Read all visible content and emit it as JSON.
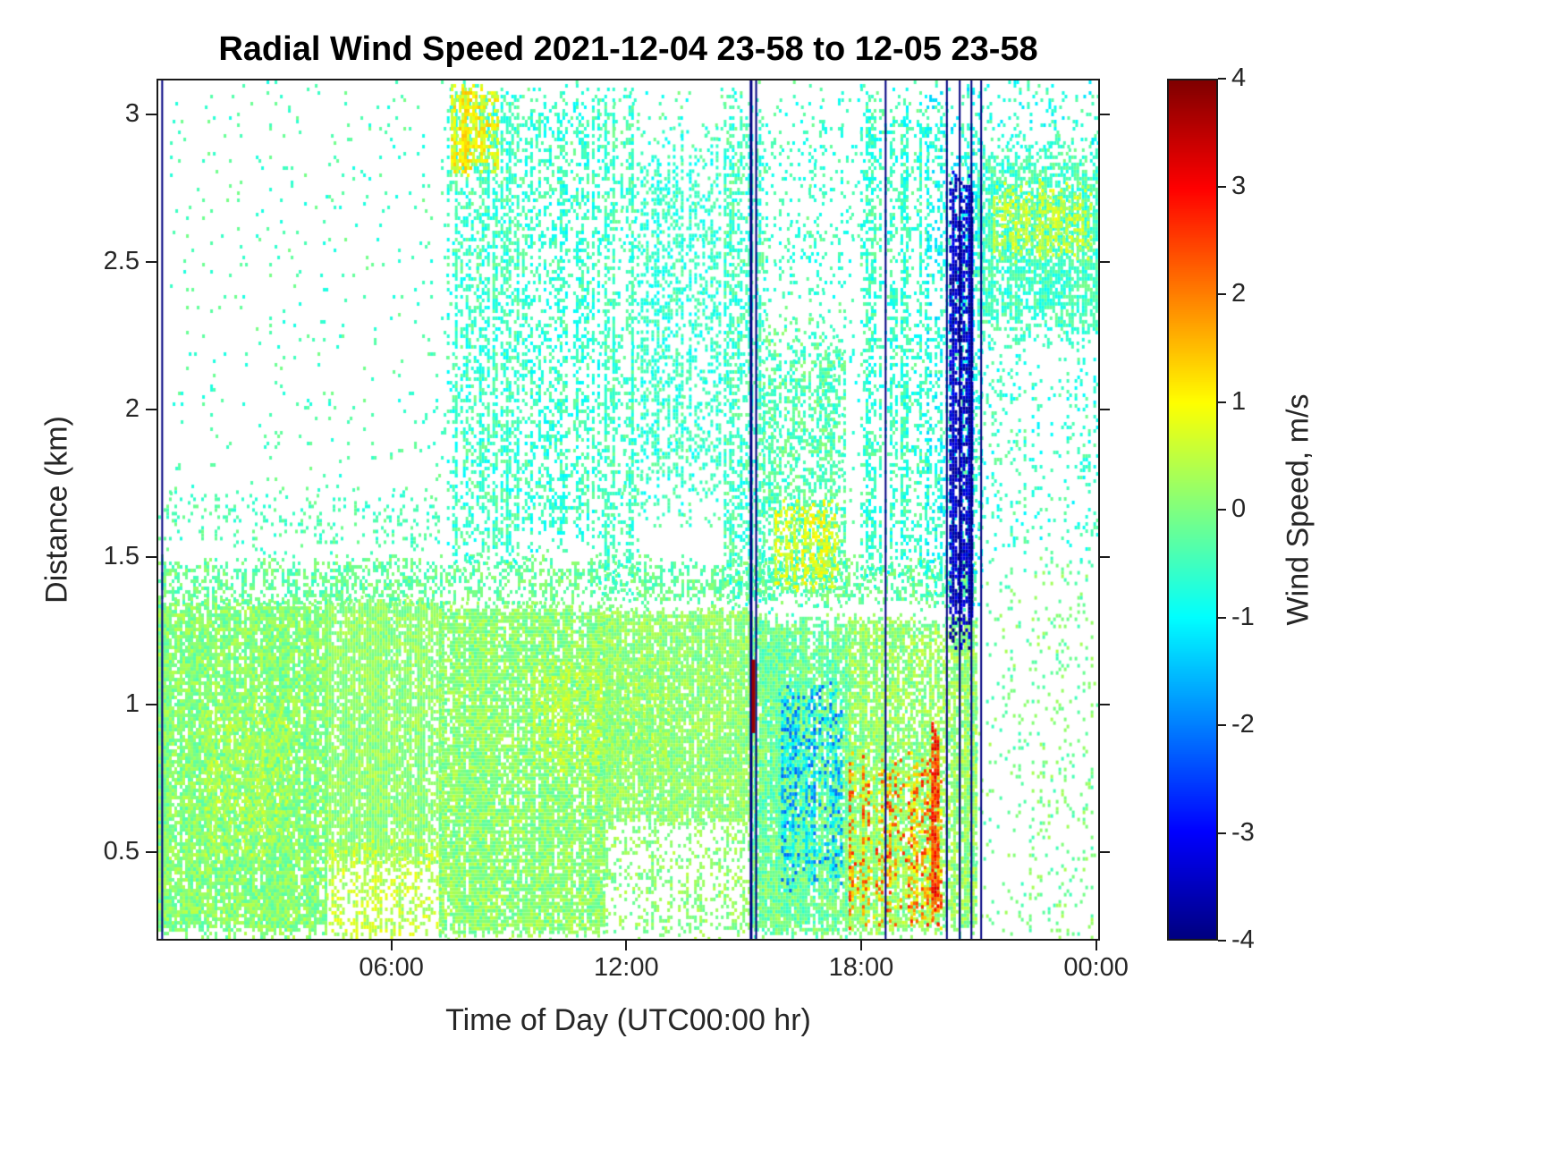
{
  "chart_data": {
    "type": "heatmap",
    "title": "Radial Wind Speed 2021-12-04 23-58 to 12-05 23-58",
    "xlabel": "Time of Day (UTC00:00 hr)",
    "ylabel": "Distance (km)",
    "x_unit": "hours since 2021-12-04 23:58 UTC",
    "x_range": [
      0,
      24.1
    ],
    "y_range": [
      0.2,
      3.12
    ],
    "x_ticks": [
      {
        "value": 6,
        "label": "06:00"
      },
      {
        "value": 12,
        "label": "12:00"
      },
      {
        "value": 18,
        "label": "18:00"
      },
      {
        "value": 24,
        "label": "00:00"
      }
    ],
    "y_ticks": [
      {
        "value": 0.5,
        "label": "0.5"
      },
      {
        "value": 1,
        "label": "1"
      },
      {
        "value": 1.5,
        "label": "1.5"
      },
      {
        "value": 2,
        "label": "2"
      },
      {
        "value": 2.5,
        "label": "2.5"
      },
      {
        "value": 3,
        "label": "3"
      }
    ],
    "colorbar": {
      "label": "Wind Speed, m/s",
      "min": -4,
      "max": 4,
      "colormap": "jet",
      "ticks": [
        {
          "value": 4,
          "label": "4"
        },
        {
          "value": 3,
          "label": "3"
        },
        {
          "value": 2,
          "label": "2"
        },
        {
          "value": 1,
          "label": "1"
        },
        {
          "value": 0,
          "label": "0"
        },
        {
          "value": -1,
          "label": "-1"
        },
        {
          "value": -2,
          "label": "-2"
        },
        {
          "value": -3,
          "label": "-3"
        },
        {
          "value": -4,
          "label": "-4"
        }
      ]
    },
    "no_data_color": "#ffffff",
    "regions": [
      {
        "name": "upper-left-speckle",
        "x": [
          0.3,
          7.4
        ],
        "y": [
          1.7,
          3.12
        ],
        "v": -0.45,
        "jit": 0.4,
        "cov": 0.035,
        "striate": 0.6,
        "taper": 0
      },
      {
        "name": "upper-speckle-general",
        "x": [
          7.4,
          21.0
        ],
        "y": [
          1.6,
          3.12
        ],
        "v": -0.5,
        "jit": 0.5,
        "cov": 0.04,
        "striate": 0.7,
        "taper": 0
      },
      {
        "name": "bl-early",
        "x": [
          0,
          4.3
        ],
        "y": [
          0.2,
          1.38
        ],
        "v": 0.05,
        "jit": 0.45,
        "cov": 0.92,
        "striate": 0.35,
        "taper": 0.05
      },
      {
        "name": "bl-early-warm",
        "x": [
          1.2,
          3.4
        ],
        "y": [
          0.45,
          1.05
        ],
        "v": 0.45,
        "jit": 0.35,
        "cov": 0.35,
        "striate": 0.5,
        "taper": 0.2
      },
      {
        "name": "bl-morning",
        "x": [
          4.3,
          7.2
        ],
        "y": [
          0.45,
          1.38
        ],
        "v": 0.12,
        "jit": 0.4,
        "cov": 0.9,
        "striate": 0.35,
        "taper": 0.05
      },
      {
        "name": "bl-morning-bottom-warm",
        "x": [
          4.3,
          7.2
        ],
        "y": [
          0.2,
          0.55
        ],
        "v": 0.5,
        "jit": 0.45,
        "cov": 0.5,
        "striate": 0.6,
        "taper": 0.1
      },
      {
        "name": "bl-midday",
        "x": [
          7.2,
          11.4
        ],
        "y": [
          0.2,
          1.36
        ],
        "v": 0.1,
        "jit": 0.45,
        "cov": 0.92,
        "striate": 0.3,
        "taper": 0.04
      },
      {
        "name": "bl-midday-warm",
        "x": [
          9.6,
          13.1
        ],
        "y": [
          0.75,
          1.18
        ],
        "v": 0.55,
        "jit": 0.3,
        "cov": 0.45,
        "striate": 0.5,
        "taper": 0.2
      },
      {
        "name": "bl-noon",
        "x": [
          11.4,
          15.2
        ],
        "y": [
          0.58,
          1.34
        ],
        "v": 0.12,
        "jit": 0.4,
        "cov": 0.9,
        "striate": 0.35,
        "taper": 0.05
      },
      {
        "name": "bl-noon-bottom-sparse",
        "x": [
          11.4,
          15.2
        ],
        "y": [
          0.2,
          0.62
        ],
        "v": 0.1,
        "jit": 0.4,
        "cov": 0.28,
        "striate": 0.7,
        "taper": 0.1
      },
      {
        "name": "bl-afternoon",
        "x": [
          15.2,
          17.7
        ],
        "y": [
          0.2,
          1.32
        ],
        "v": -0.15,
        "jit": 0.5,
        "cov": 0.85,
        "striate": 0.4,
        "taper": 0.05
      },
      {
        "name": "bl-afternoon-cool-streaks",
        "x": [
          15.9,
          17.5
        ],
        "y": [
          0.35,
          1.1
        ],
        "v": -1.5,
        "jit": 0.8,
        "cov": 0.4,
        "striate": 0.85,
        "taper": 0.15
      },
      {
        "name": "bl-evening",
        "x": [
          17.7,
          20.95
        ],
        "y": [
          0.2,
          1.32
        ],
        "v": 0.15,
        "jit": 0.5,
        "cov": 0.85,
        "striate": 0.45,
        "taper": 0.05
      },
      {
        "name": "evening-warm-streaks",
        "x": [
          17.7,
          20.1
        ],
        "y": [
          0.22,
          0.85
        ],
        "v": 1.8,
        "jit": 1.0,
        "cov": 0.4,
        "striate": 0.9,
        "taper": 0.15
      },
      {
        "name": "evening-orange-column",
        "x": [
          19.82,
          19.98
        ],
        "y": [
          0.25,
          0.95
        ],
        "v": 2.6,
        "jit": 0.8,
        "cov": 0.85,
        "striate": 0.2,
        "taper": 0.1
      },
      {
        "name": "bl-top-band",
        "x": [
          0,
          20.95
        ],
        "y": [
          1.32,
          1.52
        ],
        "v": -0.2,
        "jit": 0.4,
        "cov": 0.5,
        "striate": 0.6,
        "taper": 0.3
      },
      {
        "name": "bl-upper-sparse-band",
        "x": [
          0,
          7.2
        ],
        "y": [
          1.5,
          1.75
        ],
        "v": -0.4,
        "jit": 0.35,
        "cov": 0.18,
        "striate": 0.7,
        "taper": 0.3
      },
      {
        "name": "plume-0830",
        "x": [
          7.4,
          9.4
        ],
        "y": [
          1.45,
          3.12
        ],
        "v": -0.55,
        "jit": 0.5,
        "cov": 0.5,
        "striate": 0.8,
        "taper": 0.05
      },
      {
        "name": "plume-0830-top-warm",
        "x": [
          7.5,
          8.7
        ],
        "y": [
          2.8,
          3.12
        ],
        "v": 0.9,
        "jit": 0.6,
        "cov": 0.65,
        "striate": 0.5,
        "taper": 0.15
      },
      {
        "name": "plume-1030",
        "x": [
          9.4,
          11.3
        ],
        "y": [
          1.5,
          3.12
        ],
        "v": -0.6,
        "jit": 0.5,
        "cov": 0.38,
        "striate": 0.85,
        "taper": 0.08
      },
      {
        "name": "plume-1145",
        "x": [
          11.3,
          12.3
        ],
        "y": [
          1.34,
          3.12
        ],
        "v": -0.5,
        "jit": 0.45,
        "cov": 0.45,
        "striate": 0.8,
        "taper": 0.05
      },
      {
        "name": "plume-1330",
        "x": [
          12.3,
          14.4
        ],
        "y": [
          1.6,
          3.0
        ],
        "v": -0.6,
        "jit": 0.45,
        "cov": 0.45,
        "striate": 0.75,
        "taper": 0.18
      },
      {
        "name": "plume-1500",
        "x": [
          14.5,
          15.5
        ],
        "y": [
          1.3,
          3.12
        ],
        "v": -0.5,
        "jit": 0.5,
        "cov": 0.4,
        "striate": 0.85,
        "taper": 0.1
      },
      {
        "name": "mid-afternoon-cloud",
        "x": [
          15.5,
          17.6
        ],
        "y": [
          1.3,
          2.35
        ],
        "v": -0.35,
        "jit": 0.5,
        "cov": 0.5,
        "striate": 0.6,
        "taper": 0.2
      },
      {
        "name": "mid-afternoon-warm",
        "x": [
          15.8,
          17.4
        ],
        "y": [
          1.38,
          1.72
        ],
        "v": 0.8,
        "jit": 0.4,
        "cov": 0.5,
        "striate": 0.6,
        "taper": 0.25
      },
      {
        "name": "mid-afternoon-upper-speckle",
        "x": [
          15.5,
          17.8
        ],
        "y": [
          2.3,
          3.12
        ],
        "v": -0.6,
        "jit": 0.4,
        "cov": 0.12,
        "striate": 0.8,
        "taper": 0.2
      },
      {
        "name": "plume-1845",
        "x": [
          18.0,
          19.7
        ],
        "y": [
          1.4,
          3.12
        ],
        "v": -0.6,
        "jit": 0.5,
        "cov": 0.42,
        "striate": 0.85,
        "taper": 0.08
      },
      {
        "name": "plume-2000",
        "x": [
          19.7,
          21.1
        ],
        "y": [
          1.3,
          3.12
        ],
        "v": -0.8,
        "jit": 0.6,
        "cov": 0.32,
        "striate": 0.85,
        "taper": 0.1
      },
      {
        "name": "navy-blob",
        "x": [
          20.28,
          20.85
        ],
        "y": [
          1.15,
          2.85
        ],
        "v": -3.5,
        "jit": 0.45,
        "cov": 0.75,
        "striate": 0.5,
        "taper": 0.12
      },
      {
        "name": "night-cloud",
        "x": [
          21.0,
          24.1
        ],
        "y": [
          2.2,
          2.95
        ],
        "v": -0.5,
        "jit": 0.45,
        "cov": 0.7,
        "striate": 0.45,
        "taper": 0.2
      },
      {
        "name": "night-cloud-warm-core",
        "x": [
          21.4,
          23.9
        ],
        "y": [
          2.5,
          2.8
        ],
        "v": 0.6,
        "jit": 0.35,
        "cov": 0.55,
        "striate": 0.5,
        "taper": 0.3
      },
      {
        "name": "night-top-speckle",
        "x": [
          20.9,
          24.1
        ],
        "y": [
          2.9,
          3.12
        ],
        "v": -0.7,
        "jit": 0.5,
        "cov": 0.15,
        "striate": 0.7,
        "taper": 0
      },
      {
        "name": "night-mid-speckle",
        "x": [
          20.95,
          24.1
        ],
        "y": [
          1.45,
          2.25
        ],
        "v": -0.6,
        "jit": 0.5,
        "cov": 0.18,
        "striate": 0.7,
        "taper": 0.2
      },
      {
        "name": "night-low-speckle",
        "x": [
          20.95,
          24.1
        ],
        "y": [
          0.2,
          1.5
        ],
        "v": -0.1,
        "jit": 0.45,
        "cov": 0.1,
        "striate": 0.7,
        "taper": 0
      }
    ],
    "vertical_lines": [
      {
        "name": "navy-line-0000",
        "hour": 0.1,
        "y": [
          0.2,
          3.12
        ],
        "v": -4,
        "w": 2
      },
      {
        "name": "navy-line-1512a",
        "hour": 15.2,
        "y": [
          0.2,
          3.12
        ],
        "v": -4,
        "w": 3
      },
      {
        "name": "navy-line-1512b",
        "hour": 15.33,
        "y": [
          0.2,
          3.12
        ],
        "v": -4,
        "w": 2
      },
      {
        "name": "red-segment-1512",
        "hour": 15.26,
        "y": [
          0.9,
          1.15
        ],
        "v": 3.8,
        "w": 4
      },
      {
        "name": "navy-line-1839",
        "hour": 18.65,
        "y": [
          0.2,
          3.12
        ],
        "v": -4,
        "w": 2
      },
      {
        "name": "navy-line-2013",
        "hour": 20.22,
        "y": [
          0.2,
          3.12
        ],
        "v": -4,
        "w": 2
      },
      {
        "name": "navy-line-2033",
        "hour": 20.55,
        "y": [
          0.2,
          3.12
        ],
        "v": -4,
        "w": 2
      },
      {
        "name": "navy-line-2051",
        "hour": 20.85,
        "y": [
          0.2,
          3.12
        ],
        "v": -4,
        "w": 2
      },
      {
        "name": "navy-line-2106",
        "hour": 21.1,
        "y": [
          0.2,
          3.12
        ],
        "v": -4,
        "w": 2
      }
    ]
  }
}
